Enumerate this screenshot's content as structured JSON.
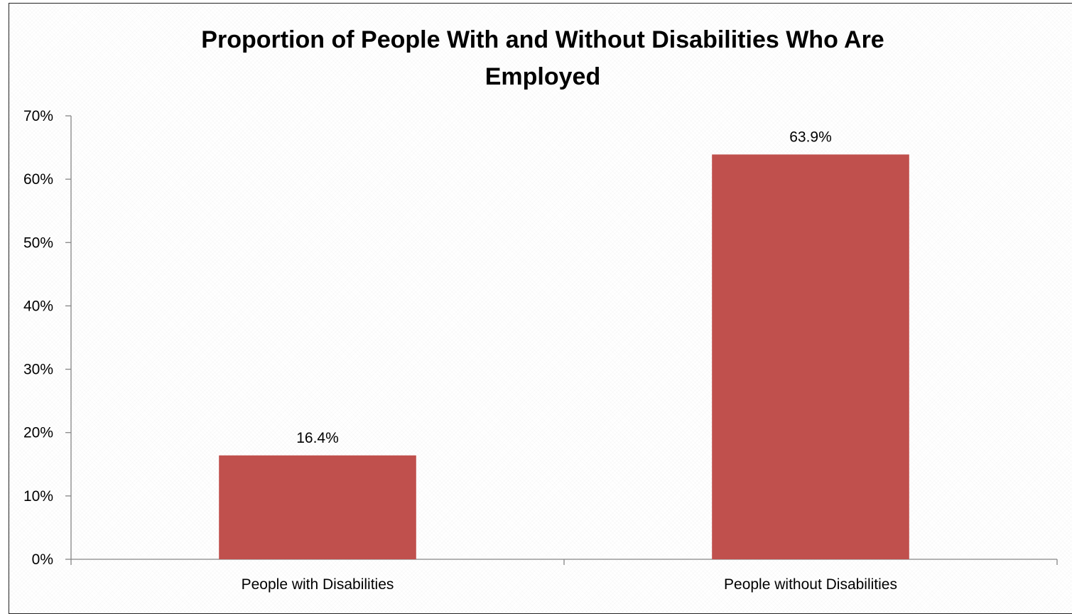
{
  "chart_data": {
    "type": "bar",
    "title": "Proportion of People With and Without Disabilities Who Are Employed",
    "xlabel": "",
    "ylabel": "",
    "categories": [
      "People with Disabilities",
      "People without Disabilities"
    ],
    "values": [
      16.4,
      63.9
    ],
    "data_labels": [
      "16.4%",
      "63.9%"
    ],
    "ylim": [
      0,
      70
    ],
    "yticks": [
      0,
      10,
      20,
      30,
      40,
      50,
      60,
      70
    ],
    "ytick_labels": [
      "0%",
      "10%",
      "20%",
      "30%",
      "40%",
      "50%",
      "60%",
      "70%"
    ],
    "grid": false,
    "legend": "none",
    "bar_color": "#C0504D",
    "axis_color": "#868686"
  }
}
